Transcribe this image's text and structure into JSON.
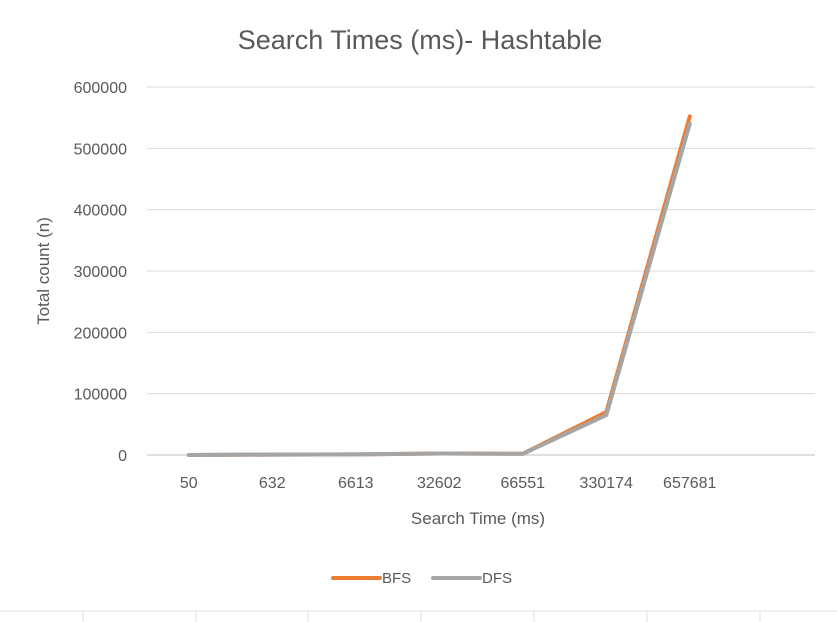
{
  "chart_data": {
    "type": "line",
    "title": "Search Times (ms)- Hashtable",
    "xlabel": "Search Time (ms)",
    "ylabel": "Total count (n)",
    "categories": [
      "50",
      "632",
      "6613",
      "32602",
      "66551",
      "330174",
      "657681"
    ],
    "ylim": [
      0,
      600000
    ],
    "yticks": [
      "0",
      "100000",
      "200000",
      "300000",
      "400000",
      "500000",
      "600000"
    ],
    "grid": true,
    "legend": "bottom",
    "series": [
      {
        "name": "BFS",
        "color": "#ED7D31",
        "values": [
          50,
          632,
          1000,
          2500,
          2000,
          70000,
          552000
        ]
      },
      {
        "name": "DFS",
        "color": "#A5A5A5",
        "values": [
          50,
          632,
          1000,
          2500,
          2000,
          65000,
          540000
        ]
      }
    ]
  }
}
